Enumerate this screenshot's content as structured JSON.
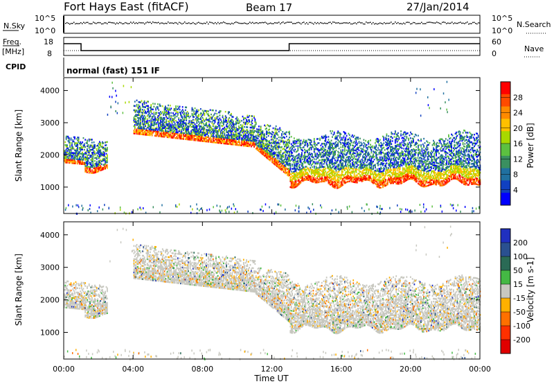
{
  "header": {
    "station": "Fort Hays East (fitACF)",
    "beam": "Beam 17",
    "date": "27/Jan/2014"
  },
  "noise_panel": {
    "left_label": "N.Sky",
    "left_ticks": [
      "10^5",
      "10^0"
    ],
    "right_label": "N.Search",
    "right_ticks": [
      "10^5",
      "10^0"
    ]
  },
  "freq_panel": {
    "left_label_top": "Freq.",
    "left_label_unit": "[MHz]",
    "left_ticks": [
      "18",
      "8"
    ],
    "right_label": "Nave",
    "right_ticks": [
      "60",
      "0"
    ],
    "freq_steps": [
      {
        "t0": 0,
        "t1": 1,
        "level": "high"
      },
      {
        "t0": 1,
        "t1": 13,
        "level": "low"
      },
      {
        "t0": 13,
        "t1": 24,
        "level": "high"
      }
    ]
  },
  "cpid": {
    "label": "CPID",
    "mode": "normal (fast) 151 IF"
  },
  "x_axis": {
    "label": "Time UT",
    "ticks": [
      "00:00",
      "04:00",
      "08:00",
      "12:00",
      "16:00",
      "20:00",
      "00:00"
    ]
  },
  "chart_data": [
    {
      "type": "heatmap",
      "title": "Power",
      "ylabel": "Slant Range [km]",
      "yticks": [
        "4000",
        "3000",
        "2000",
        "1000"
      ],
      "ylim": [
        180,
        4400
      ],
      "xlim": [
        0,
        24
      ],
      "colorbar_label": "Power [dB]",
      "colorbar_ticks": [
        "28",
        "24",
        "20",
        "16",
        "12",
        "8",
        "4"
      ],
      "colorbar_colors": [
        "#ff0000",
        "#ff4a00",
        "#ff8a00",
        "#ffc000",
        "#a8d800",
        "#5cc040",
        "#3a9060",
        "#2070a0",
        "#1040c0",
        "#0000ff"
      ]
    },
    {
      "type": "heatmap",
      "title": "Velocity",
      "ylabel": "Slant Range [km]",
      "yticks": [
        "4000",
        "3000",
        "2000",
        "1000"
      ],
      "ylim": [
        180,
        4400
      ],
      "xlim": [
        0,
        24
      ],
      "colorbar_label": "Velocity [m s-1]",
      "colorbar_ticks": [
        "200",
        "100",
        "50",
        "15",
        "-15",
        "-50",
        "-100",
        "-200"
      ],
      "colorbar_colors": [
        "#2030c0",
        "#2a5090",
        "#2a6a55",
        "#44b844",
        "#c8c8c0",
        "#ffb000",
        "#ff7000",
        "#ff3000",
        "#e00000"
      ]
    }
  ]
}
